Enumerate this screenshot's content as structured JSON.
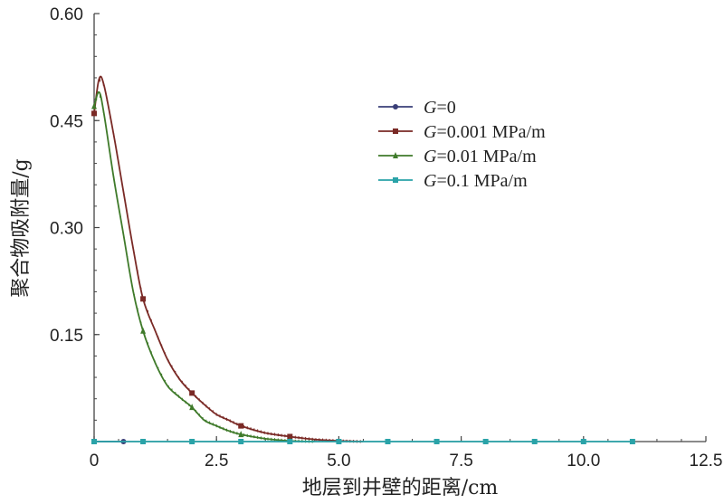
{
  "chart_data": {
    "type": "line",
    "title": "",
    "xlabel": "地层到井壁的距离/cm",
    "ylabel": "聚合物吸附量/g",
    "xlim": [
      0,
      12.5
    ],
    "ylim": [
      0,
      0.6
    ],
    "xticks": [
      0,
      2.5,
      5.0,
      7.5,
      10.0,
      12.5
    ],
    "xtick_labels": [
      "0",
      "2.5",
      "5.0",
      "7.5",
      "10.0",
      "12.5"
    ],
    "yticks": [
      0.15,
      0.3,
      0.45,
      0.6
    ],
    "ytick_labels": [
      "0.15",
      "0.30",
      "0.45",
      "0.60"
    ],
    "grid": false,
    "legend_position": "upper-center",
    "series": [
      {
        "name": "G=0",
        "legend_symbol": "G",
        "legend_rest": "=0",
        "color": "#3a3f78",
        "marker": "circle",
        "x": [
          0.0,
          0.15,
          0.3,
          0.6
        ],
        "y": [
          0.0,
          0.0,
          0.0,
          0.0
        ],
        "marker_x": [
          0.0,
          0.6
        ]
      },
      {
        "name": "G=0.001 MPa/m",
        "legend_symbol": "G",
        "legend_rest": "=0.001 MPa/m",
        "color": "#7a2a26",
        "marker": "square",
        "x": [
          0.0,
          0.1,
          0.2,
          0.4,
          0.6,
          0.8,
          1.0,
          1.25,
          1.5,
          1.75,
          2.0,
          2.25,
          2.5,
          2.75,
          3.0,
          3.5,
          4.0,
          4.5,
          5.0,
          5.5
        ],
        "y": [
          0.46,
          0.508,
          0.5,
          0.43,
          0.35,
          0.27,
          0.2,
          0.155,
          0.115,
          0.087,
          0.068,
          0.052,
          0.038,
          0.03,
          0.022,
          0.012,
          0.007,
          0.003,
          0.001,
          0.0
        ],
        "marker_x": [
          0.0,
          1.0,
          2.0,
          3.0,
          4.0
        ]
      },
      {
        "name": "G=0.01 MPa/m",
        "legend_symbol": "G",
        "legend_rest": "=0.01 MPa/m",
        "color": "#3f7a2a",
        "marker": "triangle",
        "x": [
          0.0,
          0.1,
          0.2,
          0.4,
          0.6,
          0.8,
          1.0,
          1.25,
          1.5,
          1.75,
          2.0,
          2.25,
          2.5,
          2.75,
          3.0,
          3.5,
          4.0,
          4.5
        ],
        "y": [
          0.47,
          0.49,
          0.46,
          0.37,
          0.29,
          0.21,
          0.155,
          0.11,
          0.078,
          0.062,
          0.048,
          0.03,
          0.022,
          0.015,
          0.01,
          0.004,
          0.001,
          0.0
        ],
        "marker_x": [
          0.0,
          1.0,
          2.0,
          3.0,
          4.0
        ]
      },
      {
        "name": "G=0.1 MPa/m",
        "legend_symbol": "G",
        "legend_rest": "=0.1 MPa/m",
        "color": "#2aa3a8",
        "marker": "square",
        "x": [
          0.0,
          1.0,
          2.0,
          3.0,
          4.0,
          5.0,
          6.0,
          7.0,
          8.0,
          9.0,
          10.0,
          11.0
        ],
        "y": [
          0.0,
          0.0,
          0.0,
          0.0,
          0.0,
          0.0,
          0.0,
          0.0,
          0.0,
          0.0,
          0.0,
          0.0
        ],
        "marker_x": [
          0.0,
          1.0,
          2.0,
          3.0,
          4.0,
          5.0,
          6.0,
          7.0,
          8.0,
          9.0,
          10.0,
          11.0
        ]
      }
    ]
  }
}
